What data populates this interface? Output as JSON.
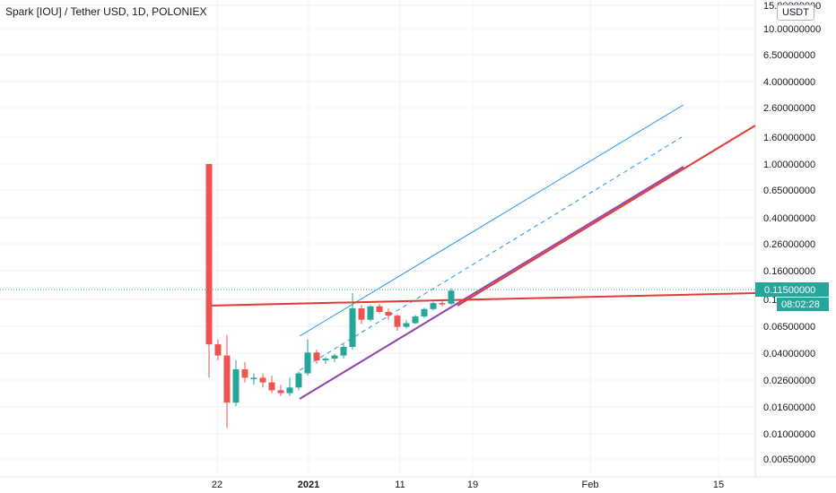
{
  "header": {
    "title": "Spark [IOU] / Tether USD, 1D, POLONIEX",
    "currency": "USDT"
  },
  "price_axis": {
    "labels": [
      "15.00000000",
      "10.00000000",
      "6.50000000",
      "4.00000000",
      "2.60000000",
      "1.60000000",
      "1.00000000",
      "0.65000000",
      "0.40000000",
      "0.26000000",
      "0.16000000",
      "0.1",
      "0.06500000",
      "0.04000000",
      "0.02600000",
      "0.01600000",
      "0.01000000",
      "0.00650000"
    ]
  },
  "time_axis": {
    "labels": [
      "22",
      "2021",
      "11",
      "19",
      "Feb",
      "15"
    ]
  },
  "last_price": {
    "price": "0.11500000",
    "countdown": "08:02:28"
  },
  "colors": {
    "up": "#26a69a",
    "down": "#ef5350",
    "channel": "#2196f3",
    "support": "#8e44ad",
    "horizontal": "#e53935",
    "background": "#ffffff"
  },
  "chart_data": {
    "type": "candlestick",
    "scale": "log",
    "candles": [
      {
        "o": 1.0,
        "h": 1.0,
        "l": 0.026,
        "c": 0.046
      },
      {
        "o": 0.046,
        "h": 0.05,
        "l": 0.035,
        "c": 0.038
      },
      {
        "o": 0.038,
        "h": 0.054,
        "l": 0.011,
        "c": 0.017
      },
      {
        "o": 0.017,
        "h": 0.035,
        "l": 0.016,
        "c": 0.03
      },
      {
        "o": 0.03,
        "h": 0.034,
        "l": 0.024,
        "c": 0.026
      },
      {
        "o": 0.026,
        "h": 0.028,
        "l": 0.023,
        "c": 0.026
      },
      {
        "o": 0.026,
        "h": 0.028,
        "l": 0.022,
        "c": 0.024
      },
      {
        "o": 0.024,
        "h": 0.027,
        "l": 0.02,
        "c": 0.021
      },
      {
        "o": 0.021,
        "h": 0.023,
        "l": 0.019,
        "c": 0.02
      },
      {
        "o": 0.02,
        "h": 0.026,
        "l": 0.019,
        "c": 0.022
      },
      {
        "o": 0.022,
        "h": 0.029,
        "l": 0.021,
        "c": 0.028
      },
      {
        "o": 0.028,
        "h": 0.05,
        "l": 0.027,
        "c": 0.04
      },
      {
        "o": 0.04,
        "h": 0.042,
        "l": 0.033,
        "c": 0.035
      },
      {
        "o": 0.035,
        "h": 0.037,
        "l": 0.033,
        "c": 0.036
      },
      {
        "o": 0.036,
        "h": 0.039,
        "l": 0.034,
        "c": 0.038
      },
      {
        "o": 0.038,
        "h": 0.046,
        "l": 0.036,
        "c": 0.044
      },
      {
        "o": 0.044,
        "h": 0.11,
        "l": 0.042,
        "c": 0.085
      },
      {
        "o": 0.085,
        "h": 0.09,
        "l": 0.065,
        "c": 0.07
      },
      {
        "o": 0.07,
        "h": 0.09,
        "l": 0.068,
        "c": 0.088
      },
      {
        "o": 0.088,
        "h": 0.092,
        "l": 0.078,
        "c": 0.08
      },
      {
        "o": 0.08,
        "h": 0.085,
        "l": 0.07,
        "c": 0.075
      },
      {
        "o": 0.075,
        "h": 0.077,
        "l": 0.058,
        "c": 0.062
      },
      {
        "o": 0.062,
        "h": 0.07,
        "l": 0.06,
        "c": 0.066
      },
      {
        "o": 0.066,
        "h": 0.076,
        "l": 0.065,
        "c": 0.074
      },
      {
        "o": 0.074,
        "h": 0.086,
        "l": 0.072,
        "c": 0.084
      },
      {
        "o": 0.084,
        "h": 0.095,
        "l": 0.082,
        "c": 0.093
      },
      {
        "o": 0.093,
        "h": 0.1,
        "l": 0.088,
        "c": 0.092
      },
      {
        "o": 0.092,
        "h": 0.12,
        "l": 0.09,
        "c": 0.115
      }
    ]
  }
}
